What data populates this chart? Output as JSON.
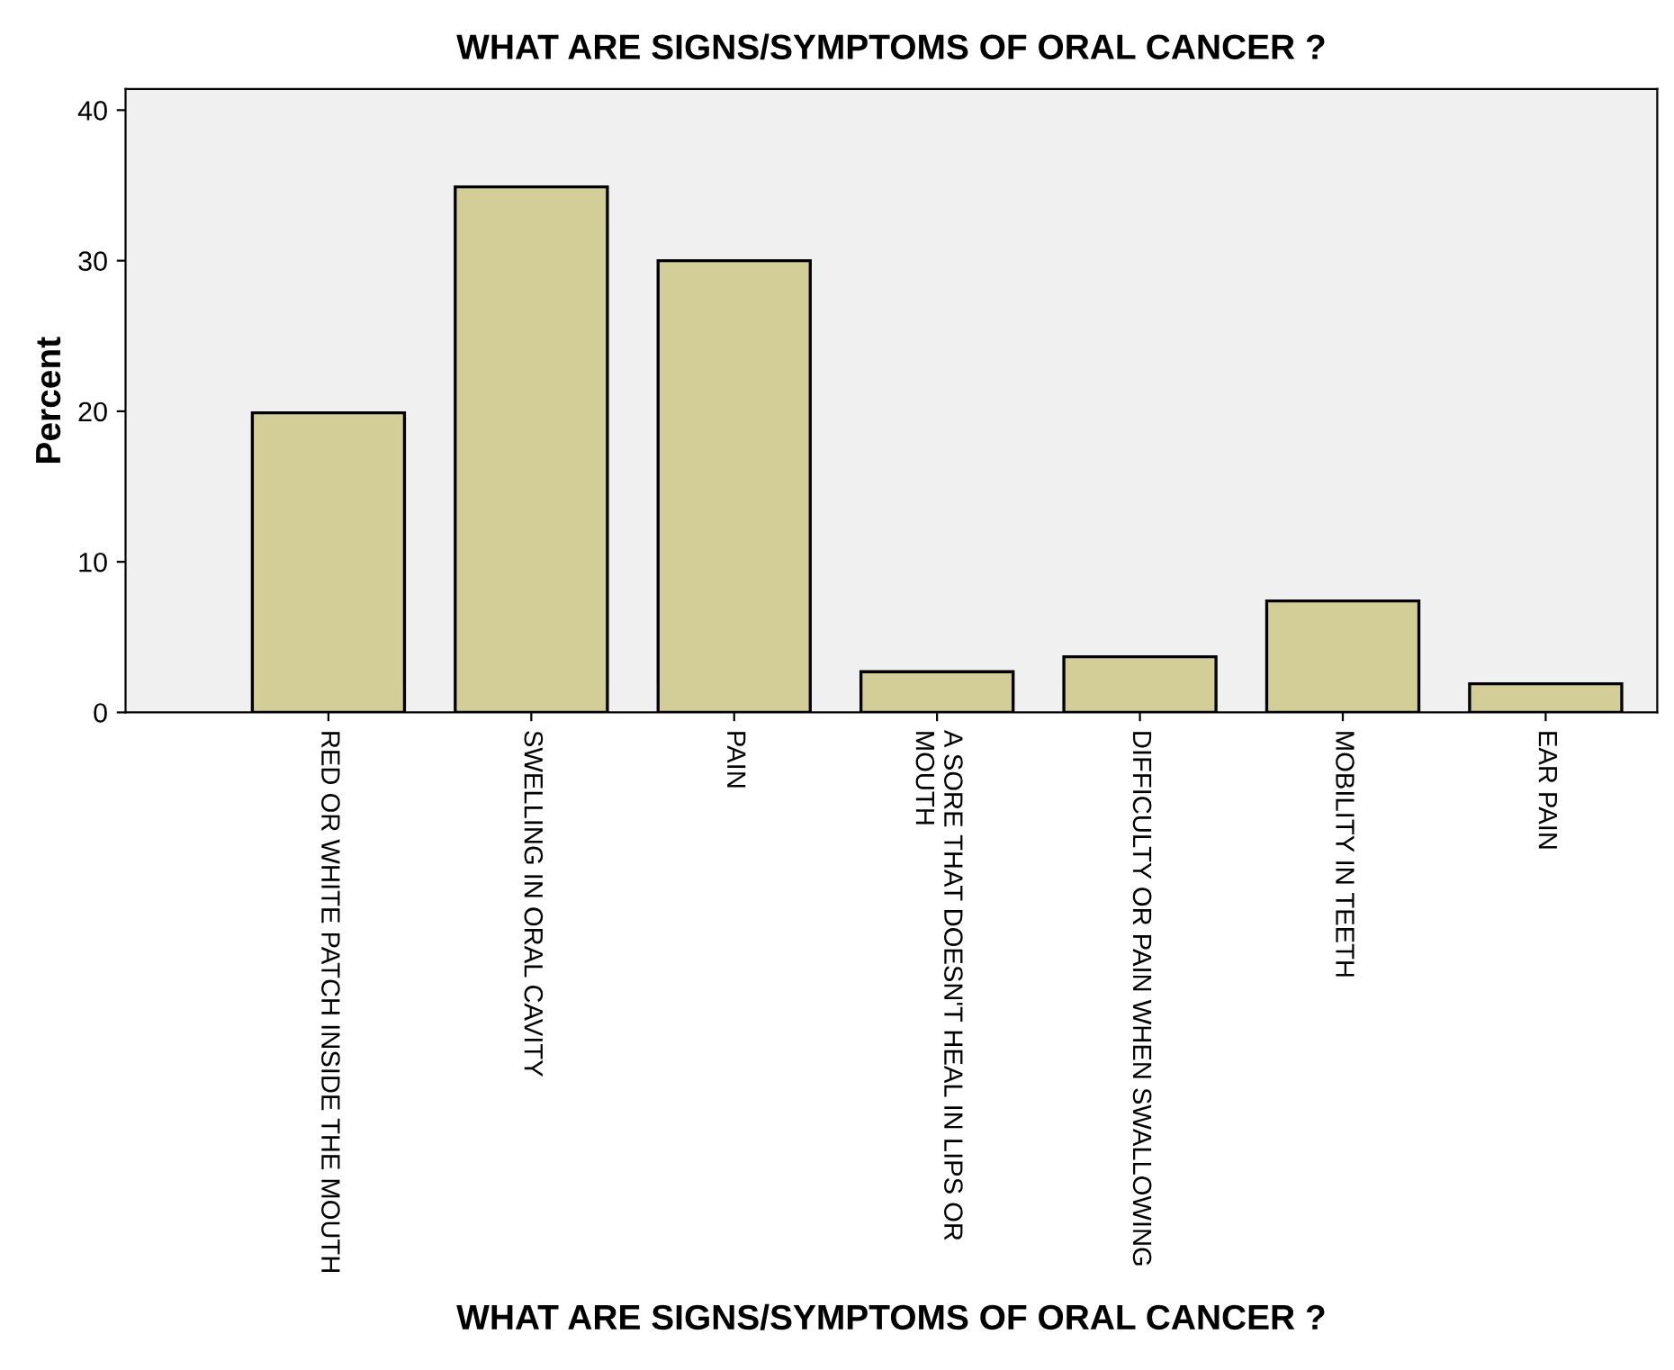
{
  "chart_data": {
    "type": "bar",
    "title": "WHAT ARE SIGNS/SYMPTOMS OF ORAL CANCER ?",
    "xlabel": "WHAT ARE SIGNS/SYMPTOMS OF ORAL CANCER ?",
    "ylabel": "Percent",
    "categories": [
      "RED OR WHITE PATCH INSIDE THE MOUTH",
      "SWELLING IN ORAL CAVITY",
      "PAIN",
      "A SORE THAT DOESN'T HEAL IN LIPS OR\nMOUTH",
      "DIFFICULTY OR PAIN WHEN SWALLOWING",
      "MOBILITY IN TEETH",
      "EAR PAIN"
    ],
    "values": [
      19.9,
      34.9,
      30.0,
      2.7,
      3.7,
      7.4,
      1.9
    ],
    "color": "#d3ce98",
    "ylim": [
      0,
      41.4
    ],
    "yticks": [
      0,
      10,
      20,
      30,
      40
    ],
    "grid": false
  }
}
